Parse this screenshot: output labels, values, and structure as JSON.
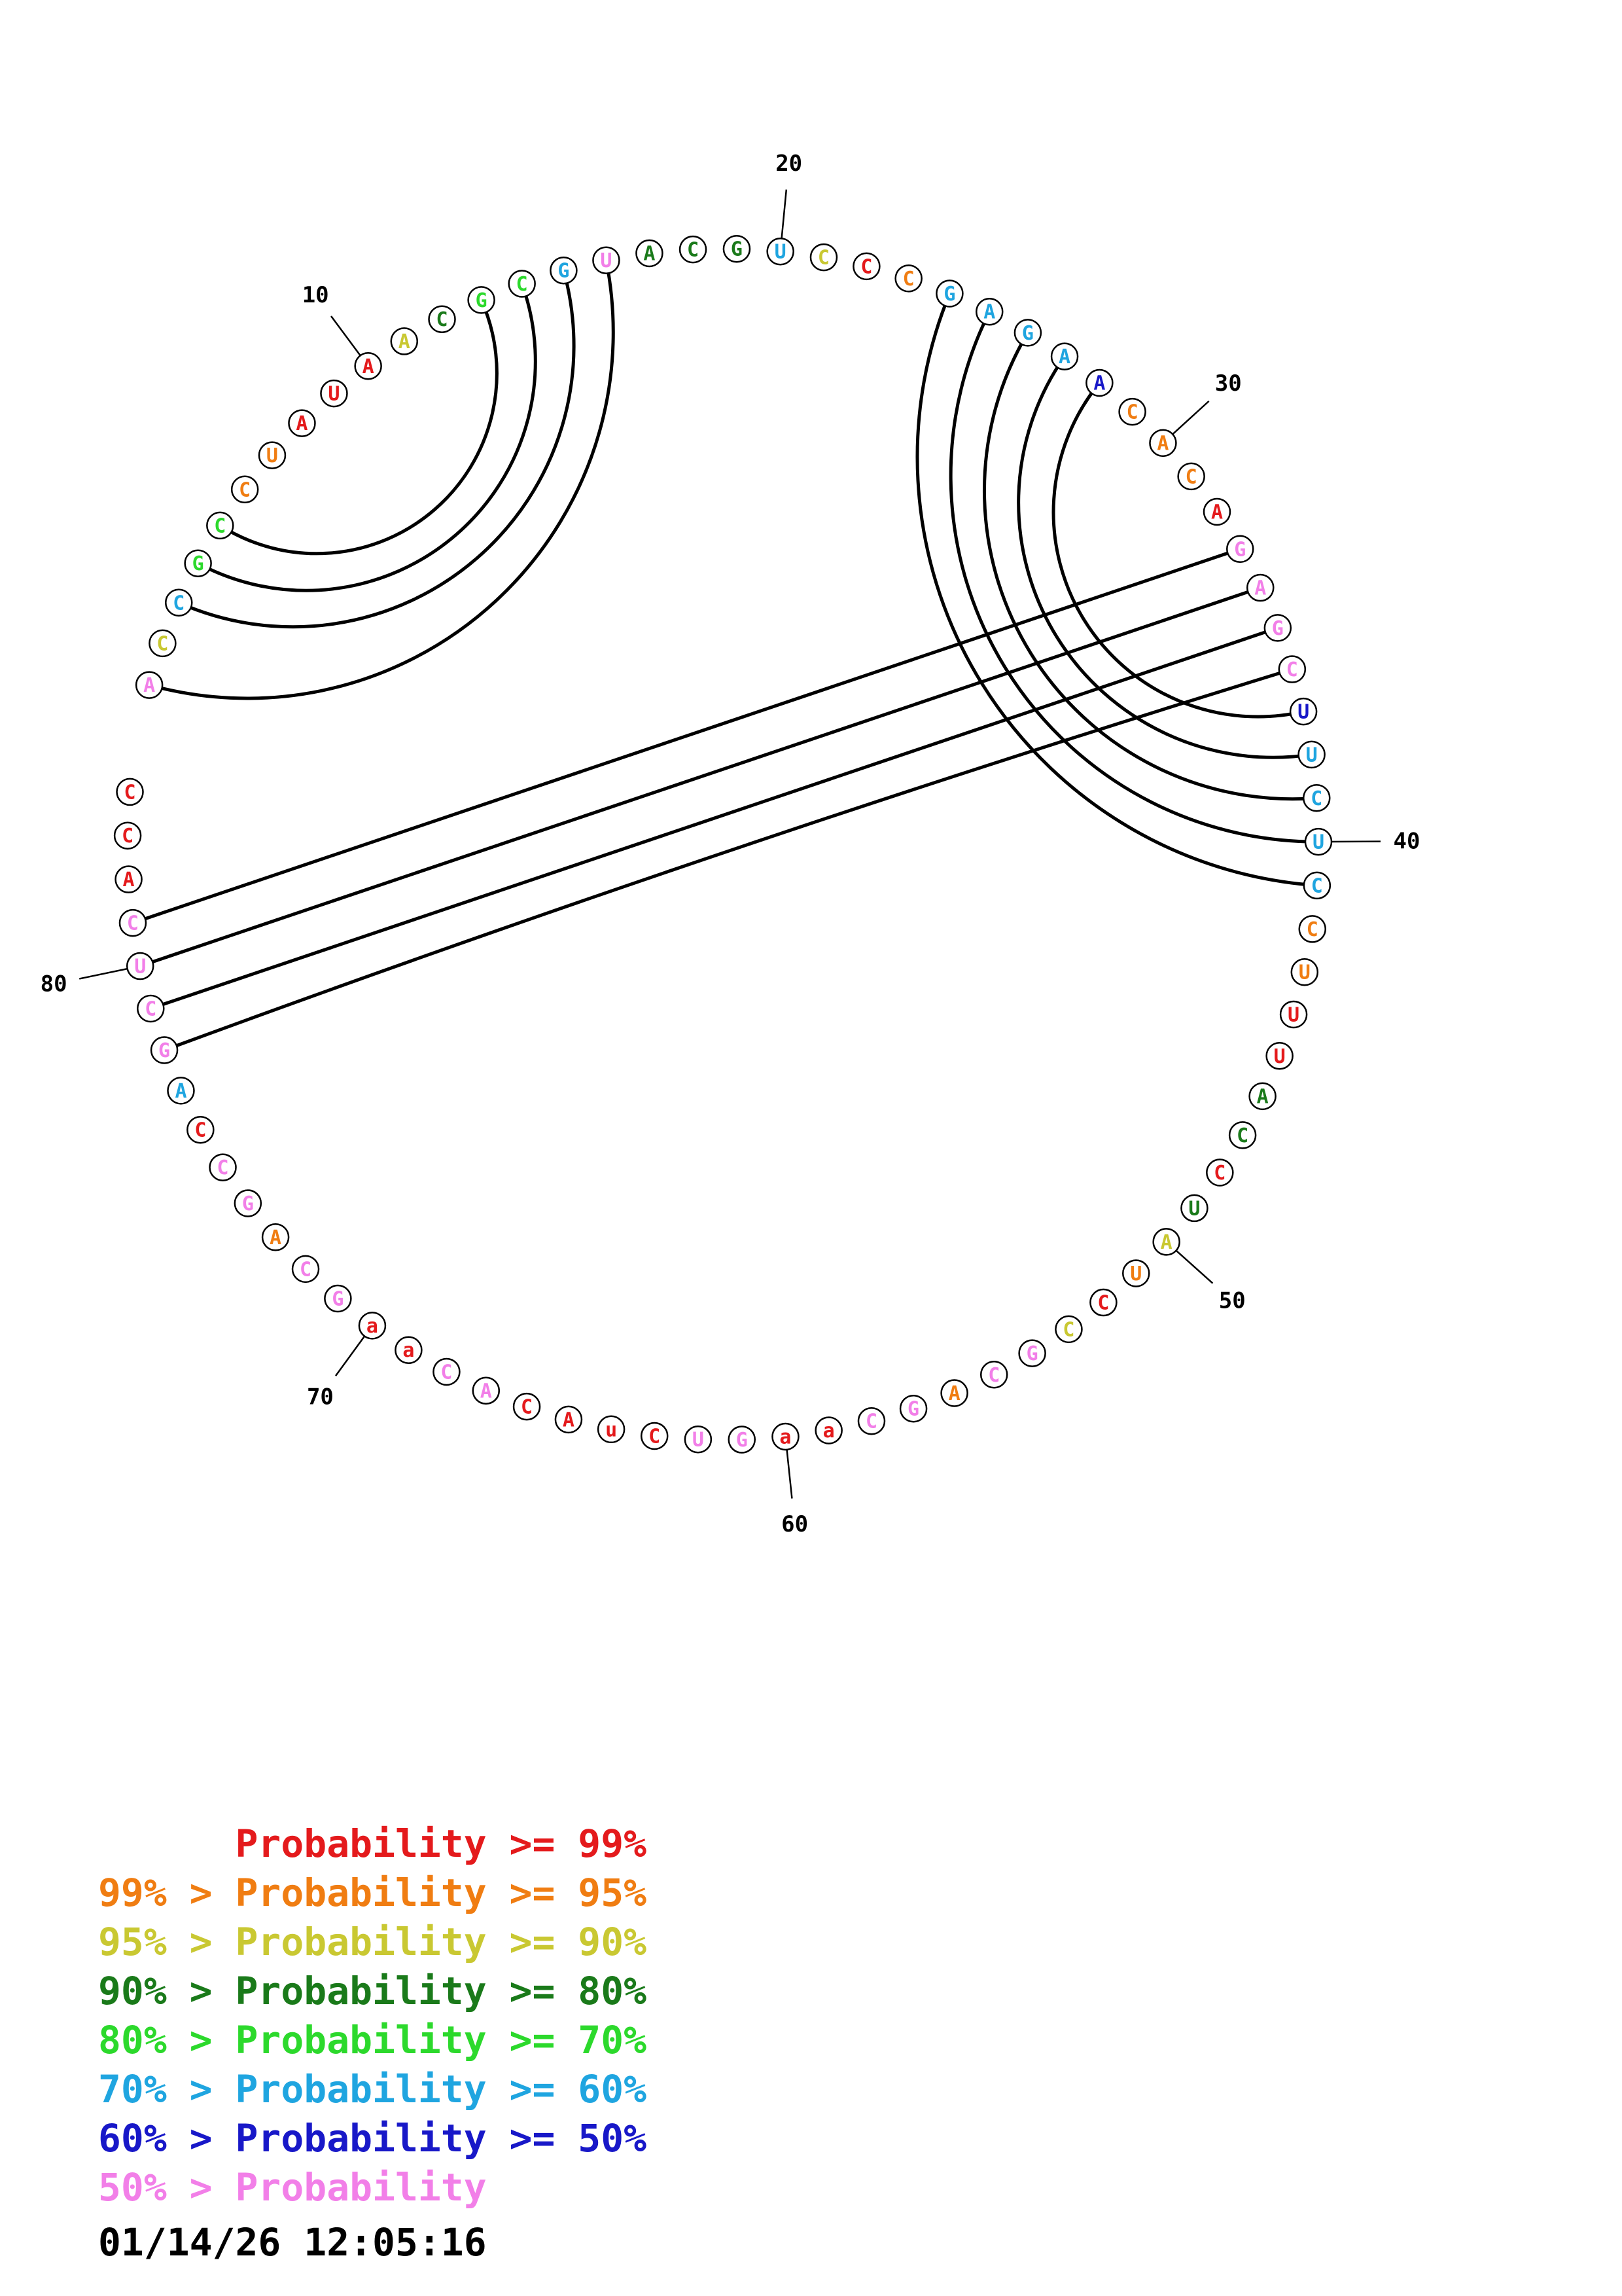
{
  "colors": {
    "p99": "#e41a1c",
    "p95": "#f07d12",
    "p90": "#c9c832",
    "p80": "#1a7a1a",
    "p70": "#2cd92c",
    "p60": "#1fa5e0",
    "p50": "#1818c8",
    "plow": "#f27fe8"
  },
  "sequence": [
    {
      "n": 1,
      "b": "A",
      "c": "plow"
    },
    {
      "n": 2,
      "b": "C",
      "c": "p90"
    },
    {
      "n": 3,
      "b": "C",
      "c": "p60"
    },
    {
      "n": 4,
      "b": "G",
      "c": "p70"
    },
    {
      "n": 5,
      "b": "C",
      "c": "p70"
    },
    {
      "n": 6,
      "b": "C",
      "c": "p95"
    },
    {
      "n": 7,
      "b": "U",
      "c": "p95"
    },
    {
      "n": 8,
      "b": "A",
      "c": "p99"
    },
    {
      "n": 9,
      "b": "U",
      "c": "p99"
    },
    {
      "n": 10,
      "b": "A",
      "c": "p99"
    },
    {
      "n": 11,
      "b": "A",
      "c": "p90"
    },
    {
      "n": 12,
      "b": "C",
      "c": "p80"
    },
    {
      "n": 13,
      "b": "G",
      "c": "p70"
    },
    {
      "n": 14,
      "b": "C",
      "c": "p70"
    },
    {
      "n": 15,
      "b": "G",
      "c": "p60"
    },
    {
      "n": 16,
      "b": "U",
      "c": "plow"
    },
    {
      "n": 17,
      "b": "A",
      "c": "p80"
    },
    {
      "n": 18,
      "b": "C",
      "c": "p80"
    },
    {
      "n": 19,
      "b": "G",
      "c": "p80"
    },
    {
      "n": 20,
      "b": "U",
      "c": "p60"
    },
    {
      "n": 21,
      "b": "C",
      "c": "p90"
    },
    {
      "n": 22,
      "b": "C",
      "c": "p99"
    },
    {
      "n": 23,
      "b": "C",
      "c": "p95"
    },
    {
      "n": 24,
      "b": "G",
      "c": "p60"
    },
    {
      "n": 25,
      "b": "A",
      "c": "p60"
    },
    {
      "n": 26,
      "b": "G",
      "c": "p60"
    },
    {
      "n": 27,
      "b": "A",
      "c": "p60"
    },
    {
      "n": 28,
      "b": "A",
      "c": "p50"
    },
    {
      "n": 29,
      "b": "C",
      "c": "p95"
    },
    {
      "n": 30,
      "b": "A",
      "c": "p95"
    },
    {
      "n": 31,
      "b": "C",
      "c": "p95"
    },
    {
      "n": 32,
      "b": "A",
      "c": "p99"
    },
    {
      "n": 33,
      "b": "G",
      "c": "plow"
    },
    {
      "n": 34,
      "b": "A",
      "c": "plow"
    },
    {
      "n": 35,
      "b": "G",
      "c": "plow"
    },
    {
      "n": 36,
      "b": "C",
      "c": "plow"
    },
    {
      "n": 37,
      "b": "U",
      "c": "p50"
    },
    {
      "n": 38,
      "b": "U",
      "c": "p60"
    },
    {
      "n": 39,
      "b": "C",
      "c": "p60"
    },
    {
      "n": 40,
      "b": "U",
      "c": "p60"
    },
    {
      "n": 41,
      "b": "C",
      "c": "p60"
    },
    {
      "n": 42,
      "b": "C",
      "c": "p95"
    },
    {
      "n": 43,
      "b": "U",
      "c": "p95"
    },
    {
      "n": 44,
      "b": "U",
      "c": "p99"
    },
    {
      "n": 45,
      "b": "U",
      "c": "p99"
    },
    {
      "n": 46,
      "b": "A",
      "c": "p80"
    },
    {
      "n": 47,
      "b": "C",
      "c": "p80"
    },
    {
      "n": 48,
      "b": "C",
      "c": "p99"
    },
    {
      "n": 49,
      "b": "U",
      "c": "p80"
    },
    {
      "n": 50,
      "b": "A",
      "c": "p90"
    },
    {
      "n": 51,
      "b": "U",
      "c": "p95"
    },
    {
      "n": 52,
      "b": "C",
      "c": "p99"
    },
    {
      "n": 53,
      "b": "C",
      "c": "p90"
    },
    {
      "n": 54,
      "b": "G",
      "c": "plow"
    },
    {
      "n": 55,
      "b": "C",
      "c": "plow"
    },
    {
      "n": 56,
      "b": "A",
      "c": "p95"
    },
    {
      "n": 57,
      "b": "G",
      "c": "plow"
    },
    {
      "n": 58,
      "b": "C",
      "c": "plow"
    },
    {
      "n": 59,
      "b": "a",
      "c": "p99"
    },
    {
      "n": 60,
      "b": "a",
      "c": "p99"
    },
    {
      "n": 61,
      "b": "G",
      "c": "plow"
    },
    {
      "n": 62,
      "b": "U",
      "c": "plow"
    },
    {
      "n": 63,
      "b": "C",
      "c": "p99"
    },
    {
      "n": 64,
      "b": "u",
      "c": "p99"
    },
    {
      "n": 65,
      "b": "A",
      "c": "p99"
    },
    {
      "n": 66,
      "b": "C",
      "c": "p99"
    },
    {
      "n": 67,
      "b": "A",
      "c": "plow"
    },
    {
      "n": 68,
      "b": "C",
      "c": "plow"
    },
    {
      "n": 69,
      "b": "a",
      "c": "p99"
    },
    {
      "n": 70,
      "b": "a",
      "c": "p99"
    },
    {
      "n": 71,
      "b": "G",
      "c": "plow"
    },
    {
      "n": 72,
      "b": "C",
      "c": "plow"
    },
    {
      "n": 73,
      "b": "A",
      "c": "p95"
    },
    {
      "n": 74,
      "b": "G",
      "c": "plow"
    },
    {
      "n": 75,
      "b": "C",
      "c": "plow"
    },
    {
      "n": 76,
      "b": "C",
      "c": "p99"
    },
    {
      "n": 77,
      "b": "A",
      "c": "p60"
    },
    {
      "n": 78,
      "b": "G",
      "c": "plow"
    },
    {
      "n": 79,
      "b": "C",
      "c": "plow"
    },
    {
      "n": 80,
      "b": "U",
      "c": "plow"
    },
    {
      "n": 81,
      "b": "C",
      "c": "plow"
    },
    {
      "n": 82,
      "b": "A",
      "c": "p99"
    },
    {
      "n": 83,
      "b": "C",
      "c": "p99"
    },
    {
      "n": 84,
      "b": "C",
      "c": "p99"
    }
  ],
  "number_labels": [
    {
      "n": 10,
      "text": "10"
    },
    {
      "n": 20,
      "text": "20"
    },
    {
      "n": 30,
      "text": "30"
    },
    {
      "n": 40,
      "text": "40"
    },
    {
      "n": 50,
      "text": "50"
    },
    {
      "n": 60,
      "text": "60"
    },
    {
      "n": 70,
      "text": "70"
    },
    {
      "n": 80,
      "text": "80"
    }
  ],
  "pairs": [
    [
      1,
      16
    ],
    [
      3,
      15
    ],
    [
      4,
      14
    ],
    [
      5,
      13
    ],
    [
      24,
      41
    ],
    [
      25,
      40
    ],
    [
      26,
      39
    ],
    [
      27,
      38
    ],
    [
      28,
      37
    ],
    [
      33,
      81
    ],
    [
      34,
      80
    ],
    [
      35,
      79
    ],
    [
      36,
      78
    ]
  ],
  "legend": [
    {
      "prefix": "    ",
      "label": "Probability >= 99%",
      "c": "p99"
    },
    {
      "prefix": "99% > ",
      "label": "Probability >= 95%",
      "c": "p95"
    },
    {
      "prefix": "95% > ",
      "label": "Probability >= 90%",
      "c": "p90"
    },
    {
      "prefix": "90% > ",
      "label": "Probability >= 80%",
      "c": "p80"
    },
    {
      "prefix": "80% > ",
      "label": "Probability >= 70%",
      "c": "p70"
    },
    {
      "prefix": "70% > ",
      "label": "Probability >= 60%",
      "c": "p60"
    },
    {
      "prefix": "60% > ",
      "label": "Probability >= 50%",
      "c": "p50"
    },
    {
      "prefix": "50% > ",
      "label": "Probability",
      "c": "plow"
    }
  ],
  "timestamp": "01/14/26 12:05:16"
}
